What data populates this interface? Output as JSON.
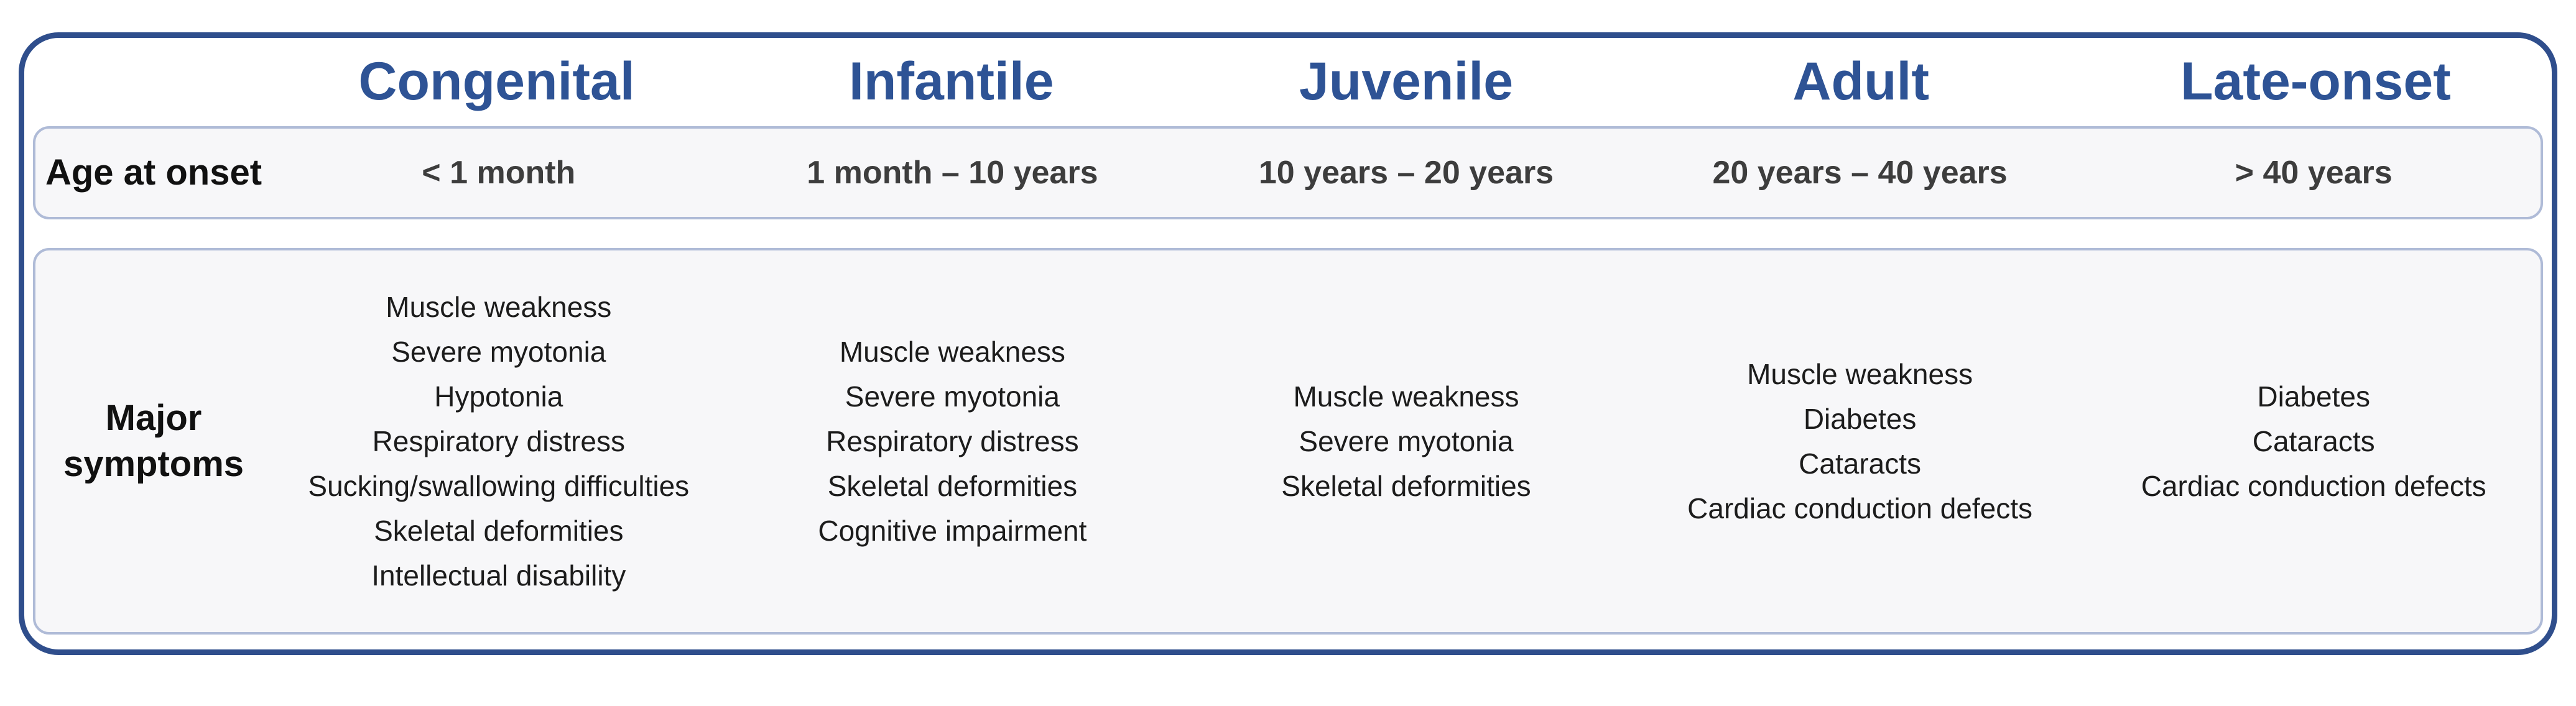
{
  "colors": {
    "header_text": "#2E5395",
    "frame_border": "#2F4E8C",
    "box_border": "#AFBBD7",
    "box_fill": "#F7F7F9",
    "label_text": "#111111",
    "value_text": "#3D3D3D",
    "symptom_text": "#1C1C1C"
  },
  "table": {
    "column_headers": [
      "Congenital",
      "Infantile",
      "Juvenile",
      "Adult",
      "Late-onset"
    ],
    "age_row": {
      "label": "Age at onset",
      "values": [
        "< 1 month",
        "1 month – 10 years",
        "10 years – 20 years",
        "20 years – 40 years",
        "> 40 years"
      ]
    },
    "symptoms_row": {
      "label": "Major symptoms",
      "values": [
        [
          "Muscle weakness",
          "Severe myotonia",
          "Hypotonia",
          "Respiratory distress",
          "Sucking/swallowing difficulties",
          "Skeletal deformities",
          "Intellectual disability"
        ],
        [
          "Muscle weakness",
          "Severe myotonia",
          "Respiratory distress",
          "Skeletal deformities",
          "Cognitive impairment"
        ],
        [
          "Muscle weakness",
          "Severe myotonia",
          "Skeletal deformities"
        ],
        [
          "Muscle weakness",
          "Diabetes",
          "Cataracts",
          "Cardiac conduction defects"
        ],
        [
          "Diabetes",
          "Cataracts",
          "Cardiac conduction defects"
        ]
      ]
    }
  },
  "chart_data": {
    "type": "table",
    "columns": [
      "",
      "Congenital",
      "Infantile",
      "Juvenile",
      "Adult",
      "Late-onset"
    ],
    "rows": [
      [
        "Age at onset",
        "< 1 month",
        "1 month – 10 years",
        "10 years – 20 years",
        "20 years – 40 years",
        "> 40 years"
      ],
      [
        "Major symptoms",
        "Muscle weakness; Severe myotonia; Hypotonia; Respiratory distress; Sucking/swallowing difficulties; Skeletal deformities; Intellectual disability",
        "Muscle weakness; Severe myotonia; Respiratory distress; Skeletal deformities; Cognitive impairment",
        "Muscle weakness; Severe myotonia; Skeletal deformities",
        "Muscle weakness; Diabetes; Cataracts; Cardiac conduction defects",
        "Diabetes; Cataracts; Cardiac conduction defects"
      ]
    ]
  }
}
